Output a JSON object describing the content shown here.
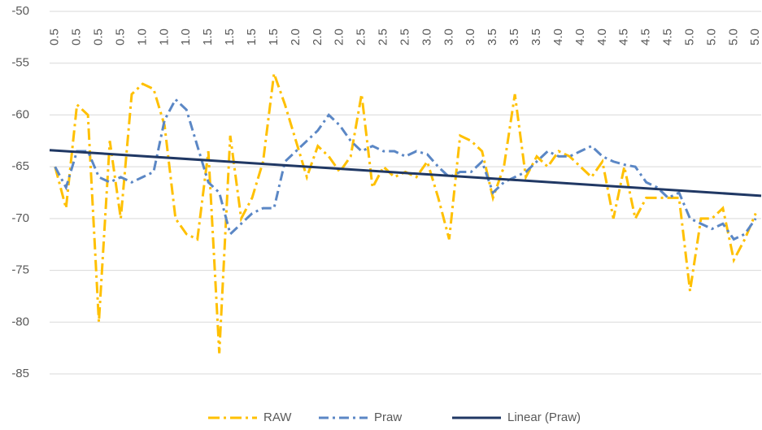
{
  "chart_data": {
    "type": "line",
    "categories": [
      "0.5",
      null,
      "0.5",
      null,
      "0.5",
      null,
      "0.5",
      null,
      "1.0",
      null,
      "1.0",
      null,
      "1.0",
      null,
      "1.5",
      null,
      "1.5",
      null,
      "1.5",
      null,
      "1.5",
      null,
      "2.0",
      null,
      "2.0",
      null,
      "2.0",
      null,
      "2.5",
      null,
      "2.5",
      null,
      "2.5",
      null,
      "3.0",
      null,
      "3.0",
      null,
      "3.0",
      null,
      "3.5",
      null,
      "3.5",
      null,
      "3.5",
      null,
      "4.0",
      null,
      "4.0",
      null,
      "4.0",
      null,
      "4.5",
      null,
      "4.5",
      null,
      "4.5",
      null,
      "5.0",
      null,
      "5.0",
      null,
      "5.0",
      null,
      "5.0"
    ],
    "series": [
      {
        "name": "RAW",
        "color": "#ffc000",
        "values": [
          -65,
          -69,
          -59,
          -60,
          -80,
          -62.5,
          -70,
          -58,
          -57,
          -57.5,
          -61,
          -70,
          -71.5,
          -72,
          -63.5,
          -83,
          -62,
          -70,
          -68,
          -64.5,
          -56,
          -59,
          -62.5,
          -66,
          -63,
          -64,
          -65.5,
          -64,
          -58,
          -67,
          -65,
          -66,
          -65.5,
          -66,
          -64.5,
          -68,
          -72,
          -62,
          -62.5,
          -63.5,
          -68,
          -65,
          -58,
          -66,
          -64,
          -65,
          -63.5,
          -64,
          -65,
          -66,
          -64.5,
          -70,
          -65,
          -70,
          -68,
          -68,
          -68,
          -68,
          -77,
          -70,
          -70,
          -69,
          -74,
          -72,
          -69.5
        ]
      },
      {
        "name": "Praw",
        "color": "#5b87c5",
        "values": [
          -65,
          -67,
          -63.5,
          -63.5,
          -66,
          -66.5,
          -66,
          -66.5,
          -66,
          -65.5,
          -60.5,
          -58.5,
          -59.5,
          -63,
          -66.5,
          -67.5,
          -71.5,
          -70.5,
          -69.5,
          -69,
          -69,
          -64.5,
          -63.5,
          -62.5,
          -61.5,
          -60,
          -61,
          -62.5,
          -63.5,
          -63,
          -63.5,
          -63.5,
          -64,
          -63.5,
          -63.8,
          -65,
          -66,
          -65.5,
          -65.5,
          -64.5,
          -67.5,
          -66.5,
          -66,
          -65.5,
          -64.5,
          -63.5,
          -64,
          -64,
          -63.5,
          -63,
          -64,
          -64.5,
          -64.8,
          -65,
          -66.5,
          -67,
          -68,
          -67.5,
          -70,
          -70.5,
          -71,
          -70.5,
          -72,
          -71.5,
          -70
        ]
      }
    ],
    "trendline": {
      "name": "Linear (Praw)",
      "color": "#203864",
      "start": -63.4,
      "end": -67.8
    },
    "ylim": [
      -85,
      -50
    ],
    "yticks": [
      -50,
      -55,
      -60,
      -65,
      -70,
      -75,
      -80,
      -85
    ],
    "grid": true,
    "legend": "bottom"
  }
}
